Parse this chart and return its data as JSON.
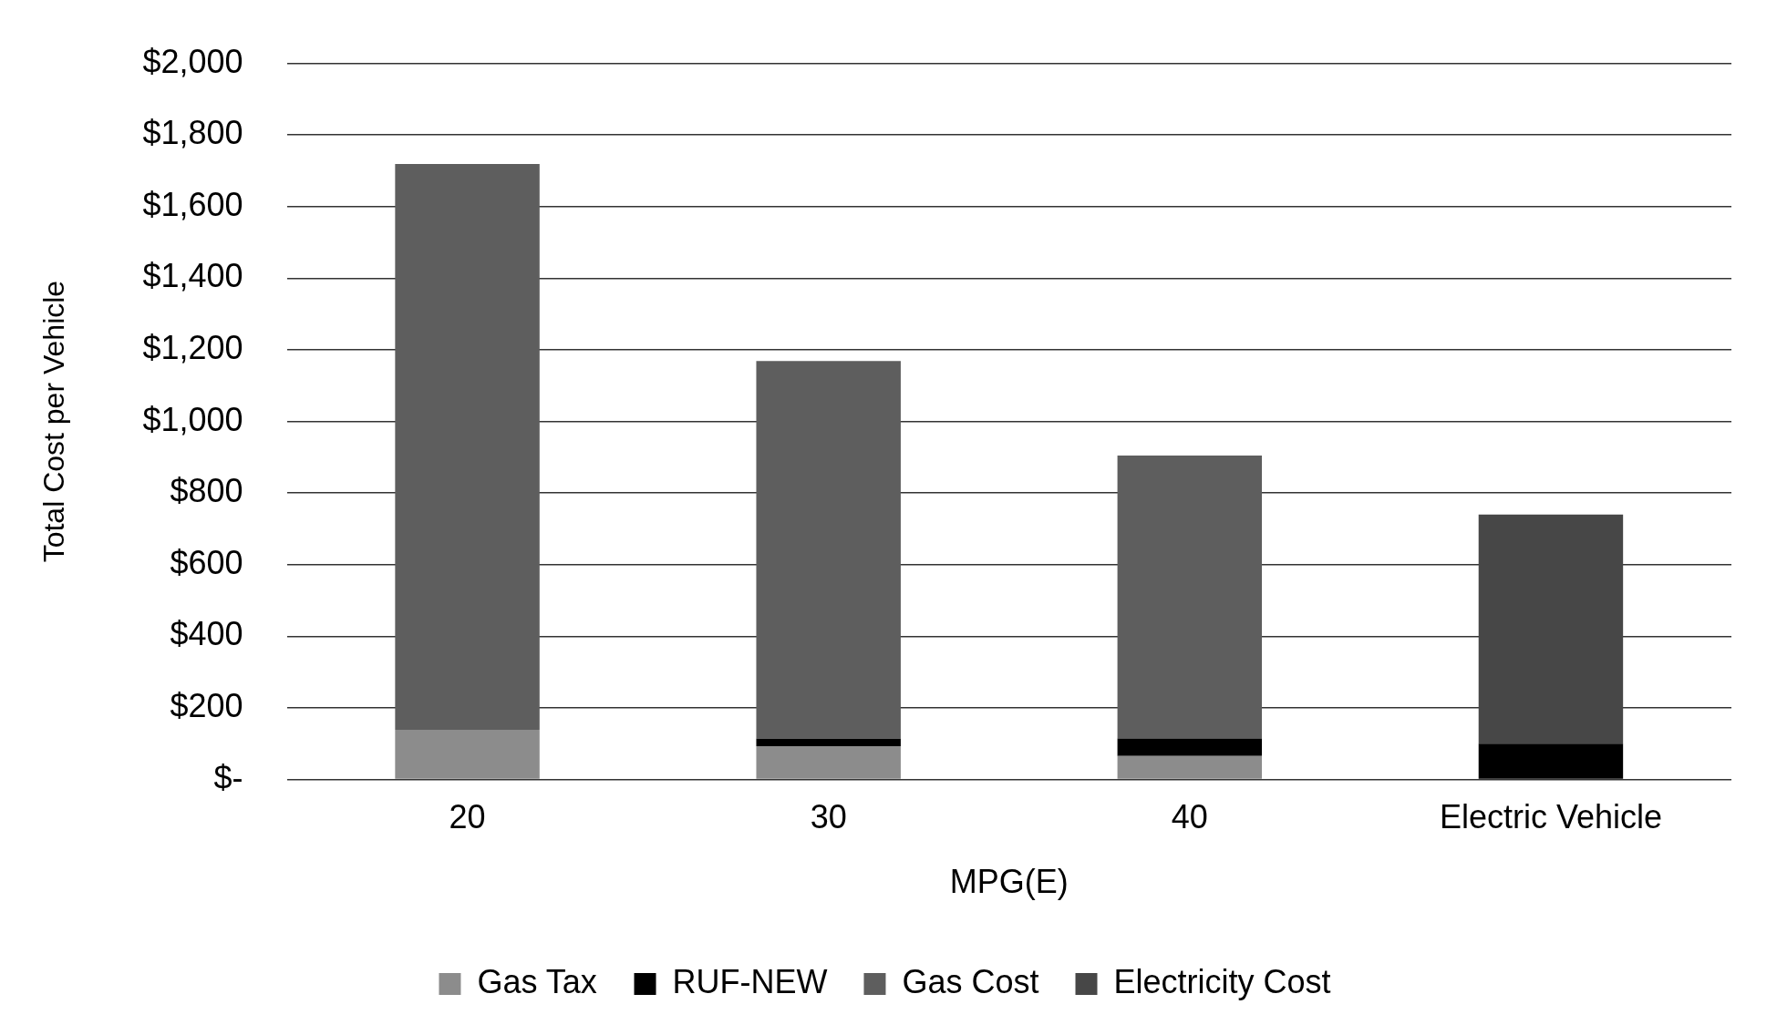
{
  "chart_data": {
    "type": "bar",
    "stacked": true,
    "xlabel": "MPG(E)",
    "ylabel": "Total Cost per Vehicle",
    "categories": [
      "20",
      "30",
      "40",
      "Electric Vehicle"
    ],
    "series": [
      {
        "name": "Gas Tax",
        "color": "#8c8c8c",
        "values": [
          139,
          93,
          66,
          null
        ]
      },
      {
        "name": "RUF-NEW",
        "color": "#000000",
        "values": [
          null,
          21,
          49,
          100
        ]
      },
      {
        "name": "Gas Cost",
        "color": "#5e5e5e",
        "values": [
          1580,
          1055,
          790,
          null
        ]
      },
      {
        "name": "Electricity Cost",
        "color": "#474747",
        "values": [
          null,
          null,
          null,
          640
        ]
      }
    ],
    "ylim": [
      0,
      2000
    ],
    "yticks": [
      {
        "value": 0,
        "label": "$-"
      },
      {
        "value": 200,
        "label": "$200"
      },
      {
        "value": 400,
        "label": "$400"
      },
      {
        "value": 600,
        "label": "$600"
      },
      {
        "value": 800,
        "label": "$800"
      },
      {
        "value": 1000,
        "label": "$1,000"
      },
      {
        "value": 1200,
        "label": "$1,200"
      },
      {
        "value": 1400,
        "label": "$1,400"
      },
      {
        "value": 1600,
        "label": "$1,600"
      },
      {
        "value": 1800,
        "label": "$1,800"
      },
      {
        "value": 2000,
        "label": "$2,000"
      }
    ],
    "grid": "y",
    "legend": "bottom"
  }
}
